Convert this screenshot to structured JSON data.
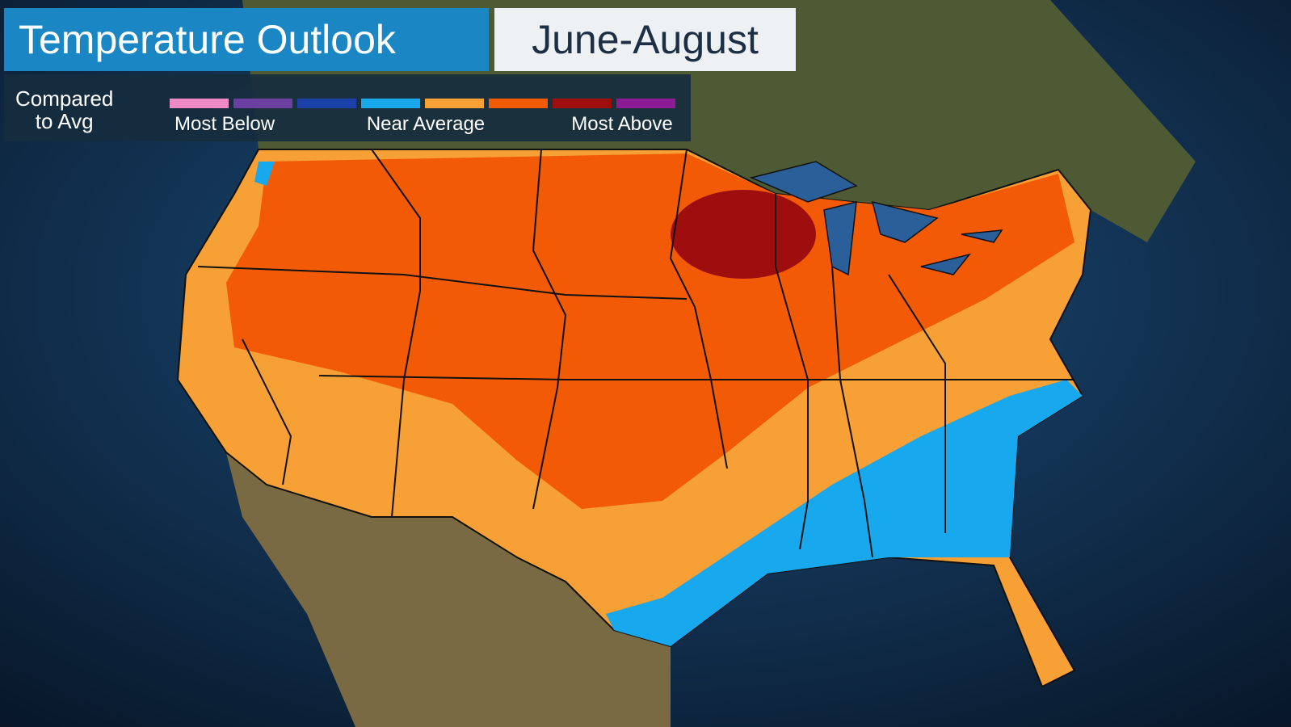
{
  "header": {
    "title": "Temperature Outlook",
    "period": "June-August"
  },
  "legend": {
    "label_lines": [
      "Compared",
      "to Avg"
    ],
    "colors": [
      "#ee8ac4",
      "#6a3fa0",
      "#1b3fa8",
      "#18a8ee",
      "#f7a035",
      "#f25a06",
      "#9e0e0e",
      "#8e1a96"
    ],
    "labels": [
      "Most Below",
      "Near Average",
      "Most Above"
    ]
  }
}
